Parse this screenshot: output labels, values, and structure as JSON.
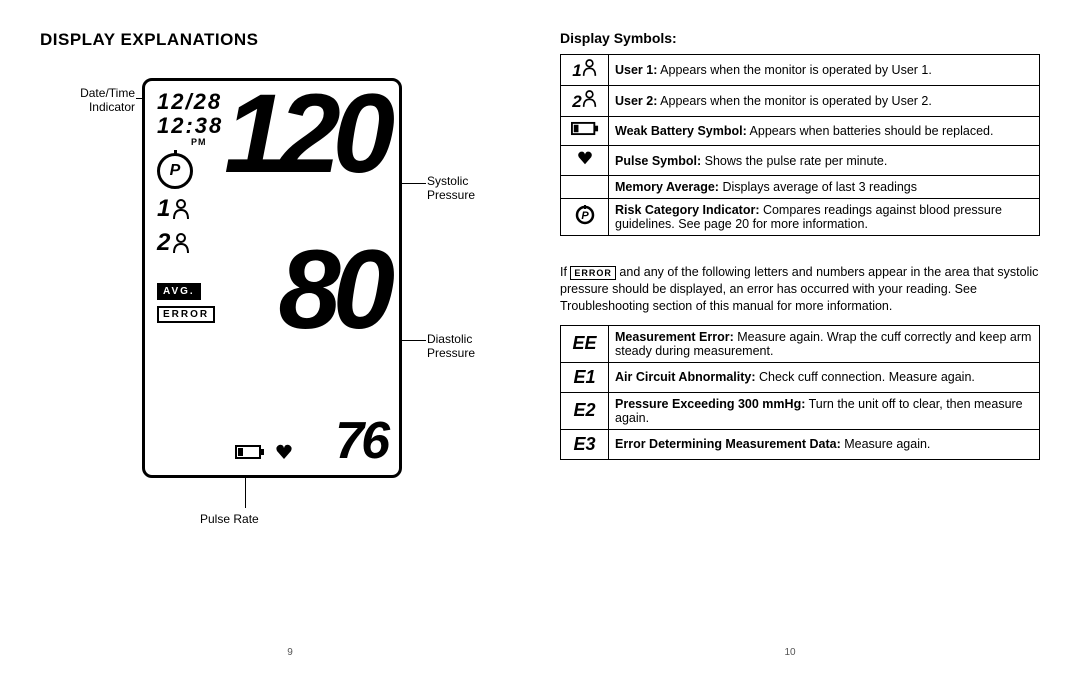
{
  "left": {
    "title": "DISPLAY EXPLANATIONS",
    "date": "12/28",
    "time": "12:38",
    "pm": "PM",
    "systolic": "120",
    "diastolic": "80",
    "pulse": "76",
    "user1": "1",
    "user2": "2",
    "avg": "AVG.",
    "error": "ERROR",
    "callouts": {
      "date": "Date/Time Indicator",
      "systolic": "Systolic Pressure",
      "diastolic": "Diastolic Pressure",
      "pulse": "Pulse Rate"
    },
    "page_num": "9"
  },
  "right": {
    "title": "Display Symbols:",
    "rows": [
      {
        "icon": "user1",
        "label": "1",
        "bold": "User 1:",
        "text": " Appears when the monitor is operated by User 1."
      },
      {
        "icon": "user2",
        "label": "2",
        "bold": "User 2:",
        "text": " Appears when the monitor is operated by User 2."
      },
      {
        "icon": "battery",
        "label": "",
        "bold": "Weak Battery Symbol:",
        "text": " Appears when batteries should be replaced."
      },
      {
        "icon": "heart",
        "label": "",
        "bold": "Pulse Symbol:",
        "text": "  Shows the pulse rate per minute."
      },
      {
        "icon": "none",
        "label": "",
        "bold": "Memory Average:",
        "text": " Displays average of last 3 readings"
      },
      {
        "icon": "risk",
        "label": "",
        "bold": "Risk Category Indicator:",
        "text": " Compares readings against blood pressure guidelines. See page 20 for more information."
      }
    ],
    "mid_pre": "If ",
    "mid_chip": "ERROR",
    "mid_post": " and any of the following letters and numbers appear in the area that systolic pressure should be displayed, an error has occurred with your reading. See Troubleshooting section of this manual for more information.",
    "err_rows": [
      {
        "code": "EE",
        "bold": "Measurement Error:",
        "text": " Measure again. Wrap the cuff correctly and keep arm steady during measurement."
      },
      {
        "code": "E1",
        "bold": "Air Circuit Abnormality:",
        "text": " Check cuff connection. Measure again."
      },
      {
        "code": "E2",
        "bold": "Pressure Exceeding 300 mmHg:",
        "text": " Turn the unit off to clear, then measure again."
      },
      {
        "code": "E3",
        "bold": "Error Determining Measurement Data:",
        "text": " Measure again."
      }
    ],
    "page_num": "10"
  },
  "colors": {
    "fg": "#000000",
    "bg": "#ffffff"
  }
}
